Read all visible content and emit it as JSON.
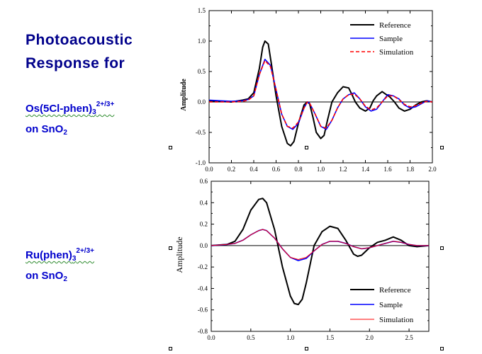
{
  "heading": {
    "line1": "Photoacoustic",
    "line2": "Response for"
  },
  "compound1": {
    "name": "Os(5Cl-phen)",
    "sub": "3",
    "charge": "2+/3+",
    "on": "on SnO",
    "on_sub": "2"
  },
  "compound2": {
    "name": "Ru(phen)",
    "sub": "3",
    "charge": "2+/3+",
    "on": "on SnO",
    "on_sub": "2"
  },
  "chart_data": [
    {
      "type": "line",
      "ylabel": "Amplitude",
      "xlim": [
        0,
        2.0
      ],
      "ylim": [
        -1.0,
        1.5
      ],
      "xticks": [
        "0.0",
        "0.2",
        "0.4",
        "0.6",
        "0.8",
        "1.0",
        "1.2",
        "1.4",
        "1.6",
        "1.8",
        "2.0"
      ],
      "yticks": [
        "1.5",
        "1.0",
        "0.5",
        "0.0",
        "-0.5",
        "-1.0"
      ],
      "legend_position": "top-right",
      "series": [
        {
          "name": "Reference",
          "color": "#000000",
          "style": "solid",
          "x": [
            0,
            0.1,
            0.2,
            0.3,
            0.35,
            0.4,
            0.45,
            0.48,
            0.5,
            0.53,
            0.56,
            0.6,
            0.65,
            0.7,
            0.73,
            0.76,
            0.8,
            0.85,
            0.88,
            0.9,
            0.93,
            0.96,
            1.0,
            1.03,
            1.06,
            1.1,
            1.15,
            1.2,
            1.25,
            1.28,
            1.31,
            1.35,
            1.4,
            1.44,
            1.47,
            1.5,
            1.55,
            1.58,
            1.62,
            1.66,
            1.7,
            1.75,
            1.8,
            1.85,
            1.9,
            1.95,
            2.0
          ],
          "y": [
            0.02,
            0.01,
            0.0,
            0.03,
            0.05,
            0.15,
            0.55,
            0.9,
            1.0,
            0.95,
            0.6,
            0.1,
            -0.4,
            -0.68,
            -0.72,
            -0.65,
            -0.35,
            -0.05,
            0.0,
            -0.03,
            -0.25,
            -0.5,
            -0.6,
            -0.55,
            -0.3,
            0.0,
            0.15,
            0.25,
            0.23,
            0.12,
            0.0,
            -0.1,
            -0.15,
            -0.1,
            0.02,
            0.1,
            0.17,
            0.13,
            0.08,
            0.0,
            -0.1,
            -0.15,
            -0.12,
            -0.05,
            0.0,
            0.02,
            0.0
          ]
        },
        {
          "name": "Sample",
          "color": "#0000ff",
          "style": "solid",
          "x": [
            0,
            0.1,
            0.2,
            0.3,
            0.35,
            0.4,
            0.45,
            0.5,
            0.55,
            0.6,
            0.65,
            0.7,
            0.75,
            0.8,
            0.85,
            0.88,
            0.9,
            0.95,
            1.0,
            1.05,
            1.1,
            1.15,
            1.2,
            1.25,
            1.3,
            1.35,
            1.4,
            1.45,
            1.5,
            1.55,
            1.6,
            1.65,
            1.7,
            1.75,
            1.8,
            1.85,
            1.9,
            1.95,
            2.0
          ],
          "y": [
            0.03,
            0.02,
            0.01,
            0.02,
            0.04,
            0.1,
            0.45,
            0.7,
            0.6,
            0.2,
            -0.2,
            -0.4,
            -0.45,
            -0.35,
            -0.1,
            0.0,
            -0.02,
            -0.2,
            -0.4,
            -0.45,
            -0.3,
            -0.1,
            0.05,
            0.12,
            0.15,
            0.05,
            -0.08,
            -0.15,
            -0.12,
            0.0,
            0.12,
            0.1,
            0.05,
            -0.05,
            -0.1,
            -0.08,
            -0.03,
            0.02,
            0.0
          ]
        },
        {
          "name": "Simulation",
          "color": "#ff0000",
          "style": "dashed",
          "x": [
            0,
            0.1,
            0.2,
            0.3,
            0.35,
            0.4,
            0.45,
            0.5,
            0.55,
            0.6,
            0.65,
            0.7,
            0.75,
            0.8,
            0.85,
            0.88,
            0.9,
            0.95,
            1.0,
            1.05,
            1.1,
            1.15,
            1.2,
            1.25,
            1.3,
            1.35,
            1.4,
            1.45,
            1.5,
            1.55,
            1.6,
            1.65,
            1.7,
            1.75,
            1.8,
            1.85,
            1.9,
            1.95,
            2.0
          ],
          "y": [
            0.0,
            0.0,
            0.0,
            0.01,
            0.03,
            0.1,
            0.45,
            0.68,
            0.58,
            0.2,
            -0.2,
            -0.4,
            -0.43,
            -0.33,
            -0.1,
            0.0,
            -0.02,
            -0.2,
            -0.4,
            -0.43,
            -0.3,
            -0.1,
            0.05,
            0.12,
            0.13,
            0.05,
            -0.07,
            -0.13,
            -0.1,
            0.0,
            0.1,
            0.1,
            0.04,
            -0.04,
            -0.08,
            -0.06,
            -0.02,
            0.01,
            0.0
          ]
        }
      ]
    },
    {
      "type": "line",
      "ylabel": "Amplitude",
      "xlim": [
        0,
        2.75
      ],
      "ylim": [
        -0.8,
        0.6
      ],
      "xticks": [
        "0.0",
        "0.5",
        "1.0",
        "1.5",
        "2.0",
        "2.5"
      ],
      "yticks": [
        "0.6",
        "0.4",
        "0.2",
        "0.0",
        "-0.2",
        "-0.4",
        "-0.6",
        "-0.8"
      ],
      "legend_position": "bottom-right",
      "series": [
        {
          "name": "Reference",
          "color": "#000000",
          "style": "solid",
          "x": [
            0,
            0.2,
            0.3,
            0.4,
            0.5,
            0.6,
            0.65,
            0.7,
            0.8,
            0.9,
            1.0,
            1.05,
            1.1,
            1.15,
            1.2,
            1.3,
            1.4,
            1.5,
            1.6,
            1.7,
            1.8,
            1.85,
            1.9,
            2.0,
            2.1,
            2.2,
            2.3,
            2.4,
            2.5,
            2.6,
            2.75
          ],
          "y": [
            0.0,
            0.01,
            0.04,
            0.15,
            0.33,
            0.43,
            0.44,
            0.4,
            0.15,
            -0.2,
            -0.47,
            -0.54,
            -0.55,
            -0.5,
            -0.35,
            0.0,
            0.13,
            0.18,
            0.16,
            0.05,
            -0.08,
            -0.1,
            -0.09,
            -0.02,
            0.03,
            0.05,
            0.08,
            0.05,
            0.0,
            -0.01,
            0.0
          ]
        },
        {
          "name": "Sample",
          "color": "#0000ff",
          "style": "solid",
          "x": [
            0,
            0.2,
            0.3,
            0.4,
            0.5,
            0.6,
            0.65,
            0.7,
            0.8,
            0.9,
            1.0,
            1.1,
            1.2,
            1.3,
            1.4,
            1.5,
            1.6,
            1.7,
            1.8,
            1.9,
            2.0,
            2.1,
            2.2,
            2.3,
            2.4,
            2.5,
            2.6,
            2.75
          ],
          "y": [
            0.0,
            0.01,
            0.02,
            0.05,
            0.1,
            0.14,
            0.15,
            0.14,
            0.07,
            -0.03,
            -0.11,
            -0.14,
            -0.12,
            -0.05,
            0.01,
            0.04,
            0.04,
            0.02,
            -0.01,
            -0.03,
            -0.02,
            0.0,
            0.02,
            0.04,
            0.03,
            0.01,
            0.0,
            0.0
          ]
        },
        {
          "name": "Simulation",
          "color": "#ff0000",
          "style": "solid",
          "x": [
            0,
            0.2,
            0.3,
            0.4,
            0.5,
            0.6,
            0.65,
            0.7,
            0.8,
            0.9,
            1.0,
            1.1,
            1.2,
            1.3,
            1.4,
            1.5,
            1.6,
            1.7,
            1.8,
            1.9,
            2.0,
            2.1,
            2.2,
            2.3,
            2.4,
            2.5,
            2.6,
            2.75
          ],
          "y": [
            0.0,
            0.01,
            0.02,
            0.05,
            0.1,
            0.14,
            0.15,
            0.14,
            0.07,
            -0.03,
            -0.11,
            -0.13,
            -0.11,
            -0.05,
            0.01,
            0.04,
            0.04,
            0.02,
            -0.01,
            -0.03,
            -0.02,
            0.0,
            0.02,
            0.04,
            0.03,
            0.01,
            0.0,
            0.0
          ]
        }
      ]
    }
  ]
}
